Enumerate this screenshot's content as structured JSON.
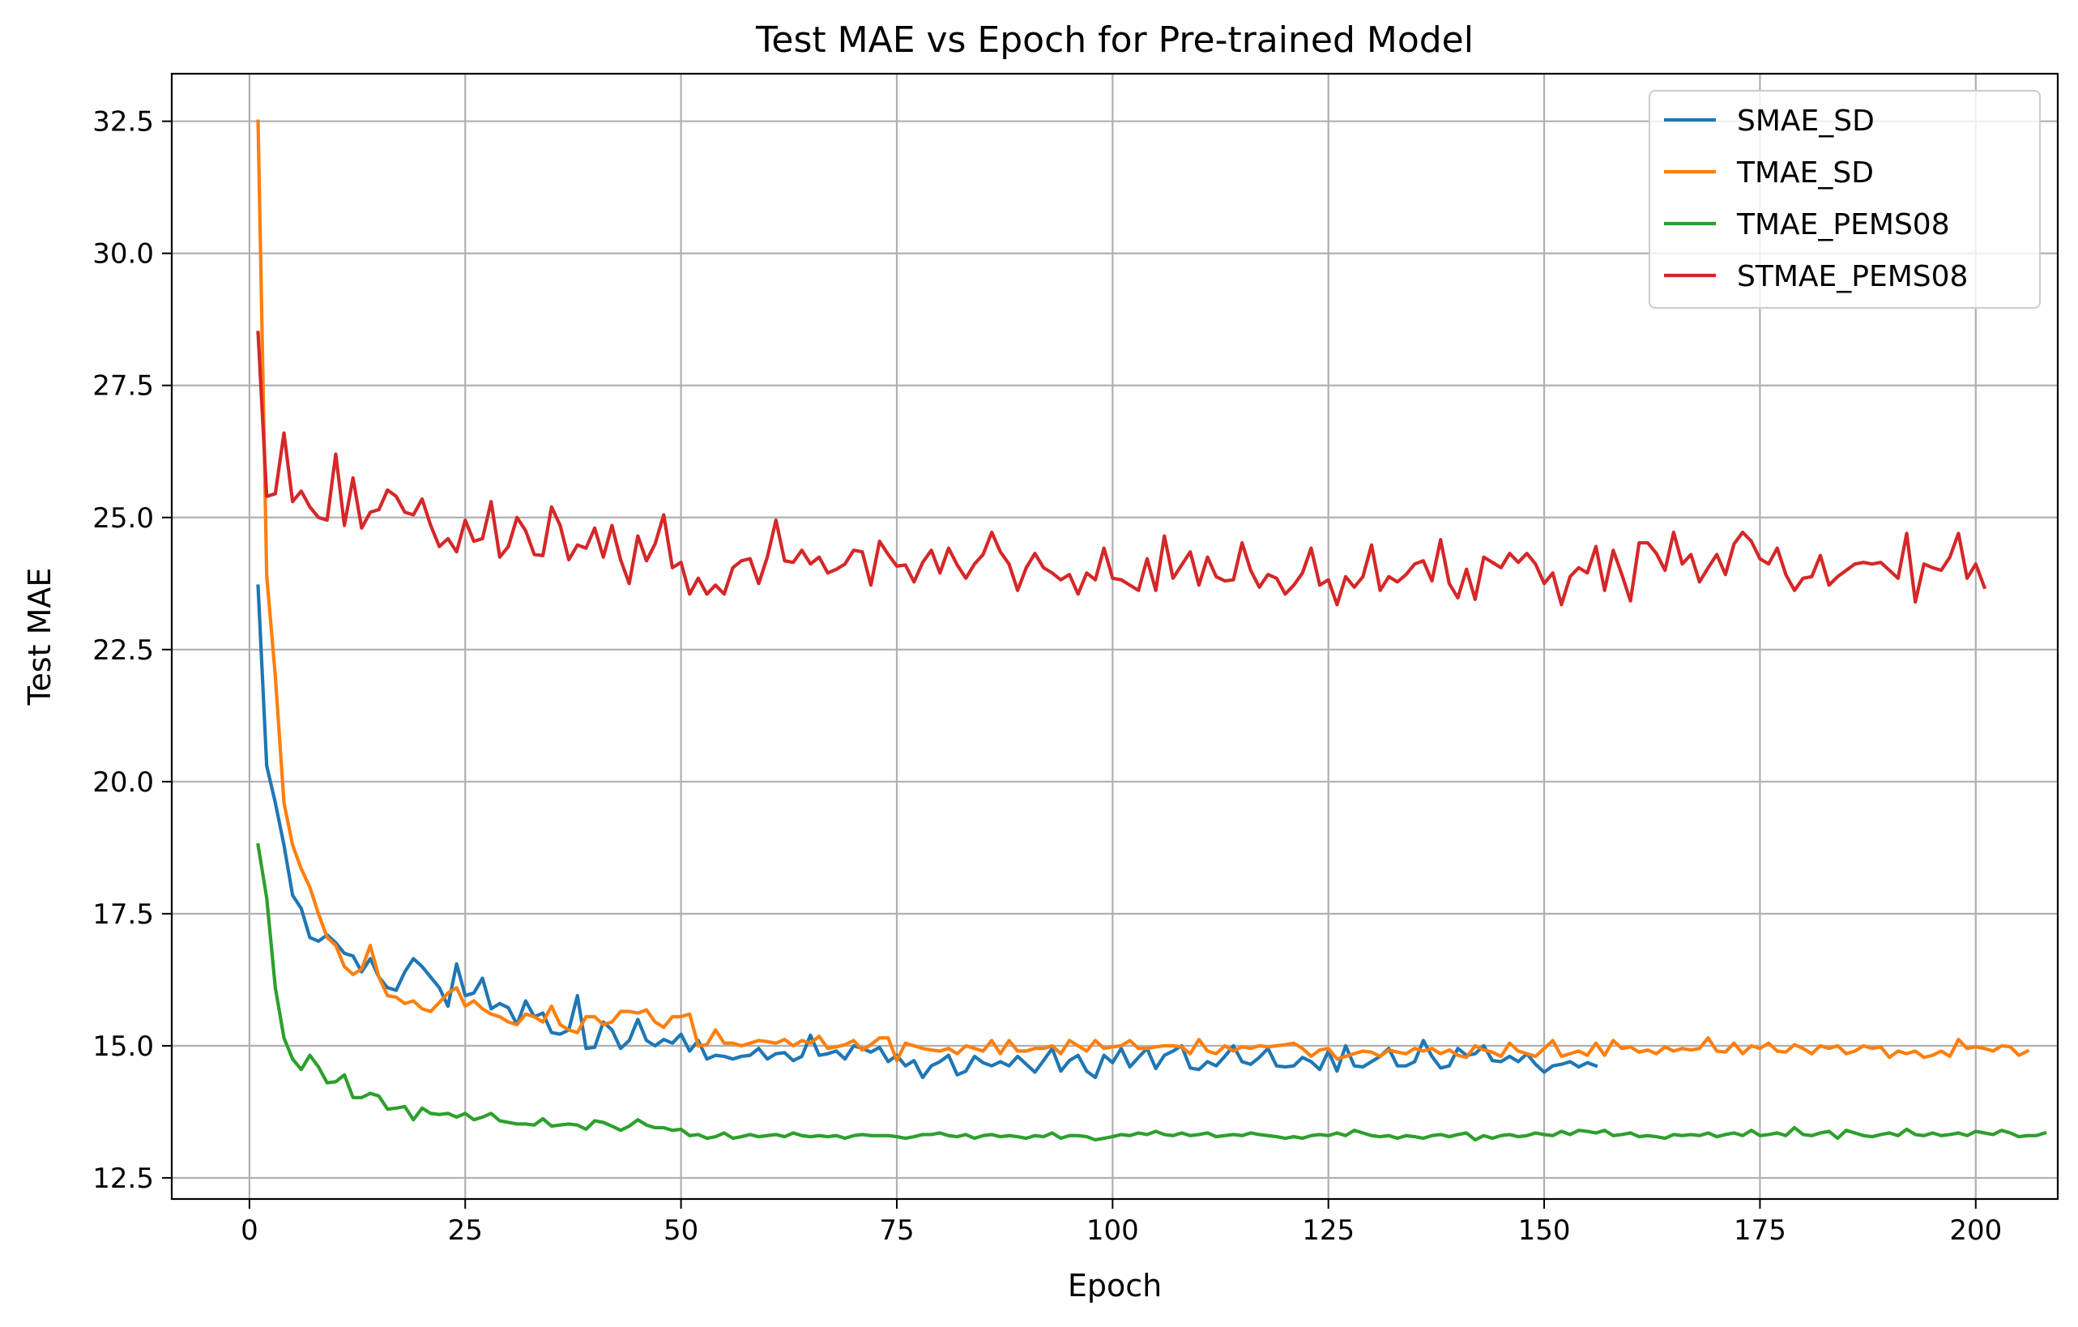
{
  "chart_data": {
    "type": "line",
    "title": "Test MAE vs Epoch for Pre-trained Model",
    "xlabel": "Epoch",
    "ylabel": "Test MAE",
    "xlim": [
      -9,
      209.5
    ],
    "ylim": [
      12.1,
      33.4
    ],
    "xticks": [
      0,
      25,
      50,
      75,
      100,
      125,
      150,
      175,
      200
    ],
    "yticks": [
      12.5,
      15.0,
      17.5,
      20.0,
      22.5,
      25.0,
      27.5,
      30.0,
      32.5
    ],
    "xtick_labels": [
      "0",
      "25",
      "50",
      "75",
      "100",
      "125",
      "150",
      "175",
      "200"
    ],
    "ytick_labels": [
      "12.5",
      "15.0",
      "17.5",
      "20.0",
      "22.5",
      "25.0",
      "27.5",
      "30.0",
      "32.5"
    ],
    "grid": true,
    "legend_position": "top-right",
    "series": [
      {
        "name": "SMAE_SD",
        "color": "#1f77b4",
        "x_start": 1,
        "values": [
          23.7,
          20.3,
          19.6,
          18.8,
          17.85,
          17.6,
          17.05,
          16.98,
          17.1,
          16.95,
          16.75,
          16.7,
          16.4,
          16.65,
          16.3,
          16.1,
          16.05,
          16.4,
          16.65,
          16.5,
          16.3,
          16.1,
          15.75,
          16.55,
          15.95,
          16.0,
          16.28,
          15.7,
          15.8,
          15.72,
          15.4,
          15.85,
          15.55,
          15.62,
          15.25,
          15.22,
          15.3,
          15.95,
          14.95,
          14.97,
          15.45,
          15.3,
          14.95,
          15.1,
          15.5,
          15.1,
          15.0,
          15.12,
          15.05,
          15.22,
          14.9,
          15.1,
          14.75,
          14.82,
          14.8,
          14.75,
          14.8,
          14.82,
          14.95,
          14.75,
          14.85,
          14.87,
          14.72,
          14.8,
          15.2,
          14.82,
          14.85,
          14.9,
          14.75,
          15.0,
          14.95,
          14.88,
          14.97,
          14.7,
          14.82,
          14.62,
          14.72,
          14.4,
          14.62,
          14.7,
          14.82,
          14.45,
          14.52,
          14.8,
          14.68,
          14.62,
          14.7,
          14.62,
          14.8,
          14.65,
          14.5,
          14.72,
          14.95,
          14.52,
          14.72,
          14.82,
          14.52,
          14.4,
          14.82,
          14.68,
          14.95,
          14.6,
          14.78,
          14.95,
          14.57,
          14.82,
          14.9,
          15.0,
          14.58,
          14.55,
          14.7,
          14.62,
          14.8,
          15.0,
          14.7,
          14.65,
          14.78,
          14.95,
          14.62,
          14.6,
          14.62,
          14.78,
          14.7,
          14.55,
          14.9,
          14.52,
          15.0,
          14.62,
          14.6,
          14.7,
          14.8,
          14.95,
          14.62,
          14.62,
          14.7,
          15.1,
          14.8,
          14.58,
          14.62,
          14.95,
          14.82,
          14.85,
          15.0,
          14.72,
          14.7,
          14.8,
          14.7,
          14.85,
          14.65,
          14.5,
          14.62,
          14.65,
          14.7,
          14.6,
          14.68,
          14.62
        ]
      },
      {
        "name": "TMAE_SD",
        "color": "#ff7f0e",
        "x_start": 1,
        "values": [
          32.5,
          23.9,
          22.0,
          19.6,
          18.8,
          18.35,
          18.0,
          17.5,
          17.05,
          16.9,
          16.5,
          16.35,
          16.45,
          16.9,
          16.3,
          15.95,
          15.92,
          15.8,
          15.85,
          15.7,
          15.65,
          15.82,
          16.0,
          16.1,
          15.75,
          15.85,
          15.7,
          15.6,
          15.55,
          15.45,
          15.4,
          15.6,
          15.55,
          15.45,
          15.75,
          15.4,
          15.3,
          15.25,
          15.55,
          15.55,
          15.4,
          15.45,
          15.65,
          15.65,
          15.62,
          15.68,
          15.45,
          15.35,
          15.55,
          15.55,
          15.6,
          15.0,
          15.02,
          15.3,
          15.05,
          15.05,
          15.0,
          15.05,
          15.1,
          15.08,
          15.05,
          15.12,
          15.0,
          15.1,
          15.05,
          15.18,
          14.95,
          14.98,
          15.02,
          15.1,
          14.92,
          15.02,
          15.15,
          15.15,
          14.72,
          15.05,
          15.0,
          14.95,
          14.92,
          14.9,
          14.95,
          14.85,
          15.0,
          14.95,
          14.9,
          15.1,
          14.85,
          15.1,
          14.9,
          14.9,
          14.95,
          14.95,
          15.0,
          14.85,
          15.1,
          15.0,
          14.9,
          15.1,
          14.95,
          14.98,
          15.0,
          15.1,
          14.95,
          14.95,
          14.98,
          15.0,
          15.0,
          14.98,
          14.85,
          15.12,
          14.9,
          14.85,
          15.0,
          14.9,
          14.98,
          14.95,
          15.0,
          14.98,
          15.0,
          15.02,
          15.05,
          14.95,
          14.8,
          14.92,
          14.95,
          14.75,
          14.8,
          14.85,
          14.9,
          14.88,
          14.8,
          14.92,
          14.88,
          14.85,
          14.95,
          14.9,
          14.95,
          14.85,
          14.92,
          14.82,
          14.78,
          15.0,
          14.92,
          14.88,
          14.8,
          15.05,
          14.9,
          14.85,
          14.8,
          14.95,
          15.1,
          14.8,
          14.85,
          14.9,
          14.82,
          15.05,
          14.82,
          15.1,
          14.95,
          14.98,
          14.88,
          14.92,
          14.85,
          14.98,
          14.9,
          14.95,
          14.92,
          14.95,
          15.15,
          14.9,
          14.88,
          15.05,
          14.85,
          15.0,
          14.95,
          15.05,
          14.9,
          14.88,
          15.02,
          14.95,
          14.85,
          15.0,
          14.95,
          15.0,
          14.85,
          14.9,
          15.0,
          14.95,
          14.98,
          14.78,
          14.9,
          14.85,
          14.9,
          14.78,
          14.82,
          14.9,
          14.8,
          15.12,
          14.95,
          14.98,
          14.95,
          14.9,
          15.0,
          14.98,
          14.82,
          14.9
        ]
      },
      {
        "name": "TMAE_PEMS08",
        "color": "#2ca02c",
        "x_start": 1,
        "values": [
          18.8,
          17.8,
          16.1,
          15.15,
          14.75,
          14.55,
          14.82,
          14.6,
          14.3,
          14.32,
          14.45,
          14.02,
          14.02,
          14.1,
          14.05,
          13.8,
          13.82,
          13.85,
          13.6,
          13.82,
          13.72,
          13.7,
          13.72,
          13.65,
          13.72,
          13.6,
          13.65,
          13.72,
          13.58,
          13.55,
          13.52,
          13.52,
          13.5,
          13.62,
          13.48,
          13.5,
          13.52,
          13.5,
          13.42,
          13.58,
          13.55,
          13.48,
          13.4,
          13.48,
          13.6,
          13.5,
          13.45,
          13.45,
          13.4,
          13.42,
          13.3,
          13.32,
          13.25,
          13.28,
          13.35,
          13.25,
          13.28,
          13.32,
          13.28,
          13.3,
          13.32,
          13.28,
          13.35,
          13.3,
          13.28,
          13.3,
          13.28,
          13.3,
          13.25,
          13.3,
          13.32,
          13.3,
          13.3,
          13.3,
          13.28,
          13.25,
          13.28,
          13.32,
          13.32,
          13.35,
          13.3,
          13.28,
          13.32,
          13.25,
          13.3,
          13.32,
          13.28,
          13.3,
          13.28,
          13.25,
          13.3,
          13.28,
          13.35,
          13.25,
          13.3,
          13.3,
          13.28,
          13.22,
          13.25,
          13.28,
          13.32,
          13.3,
          13.35,
          13.32,
          13.38,
          13.32,
          13.3,
          13.35,
          13.3,
          13.32,
          13.35,
          13.28,
          13.3,
          13.32,
          13.3,
          13.35,
          13.32,
          13.3,
          13.28,
          13.25,
          13.28,
          13.25,
          13.3,
          13.32,
          13.3,
          13.35,
          13.3,
          13.4,
          13.35,
          13.3,
          13.28,
          13.3,
          13.25,
          13.3,
          13.28,
          13.25,
          13.3,
          13.32,
          13.28,
          13.32,
          13.35,
          13.22,
          13.3,
          13.25,
          13.3,
          13.32,
          13.28,
          13.3,
          13.35,
          13.32,
          13.3,
          13.38,
          13.32,
          13.4,
          13.38,
          13.35,
          13.4,
          13.3,
          13.32,
          13.35,
          13.28,
          13.3,
          13.28,
          13.25,
          13.32,
          13.3,
          13.32,
          13.3,
          13.35,
          13.28,
          13.32,
          13.35,
          13.3,
          13.4,
          13.3,
          13.32,
          13.35,
          13.3,
          13.45,
          13.32,
          13.3,
          13.35,
          13.38,
          13.25,
          13.4,
          13.35,
          13.3,
          13.28,
          13.32,
          13.35,
          13.3,
          13.42,
          13.32,
          13.3,
          13.35,
          13.3,
          13.32,
          13.35,
          13.3,
          13.38,
          13.35,
          13.32,
          13.4,
          13.35,
          13.28,
          13.3,
          13.3,
          13.35
        ]
      },
      {
        "name": "STMAE_PEMS08",
        "color": "#d62728",
        "x_start": 1,
        "values": [
          28.5,
          25.4,
          25.45,
          26.6,
          25.3,
          25.5,
          25.2,
          25.0,
          24.95,
          26.2,
          24.85,
          25.75,
          24.8,
          25.1,
          25.15,
          25.52,
          25.4,
          25.1,
          25.05,
          25.35,
          24.85,
          24.45,
          24.6,
          24.35,
          24.95,
          24.55,
          24.6,
          25.3,
          24.25,
          24.45,
          25.0,
          24.75,
          24.3,
          24.28,
          25.2,
          24.85,
          24.2,
          24.48,
          24.42,
          24.8,
          24.25,
          24.85,
          24.2,
          23.75,
          24.65,
          24.18,
          24.5,
          25.05,
          24.05,
          24.15,
          23.55,
          23.85,
          23.55,
          23.72,
          23.55,
          24.05,
          24.18,
          24.22,
          23.75,
          24.25,
          24.95,
          24.18,
          24.15,
          24.38,
          24.12,
          24.25,
          23.95,
          24.02,
          24.12,
          24.38,
          24.35,
          23.72,
          24.55,
          24.3,
          24.08,
          24.1,
          23.78,
          24.15,
          24.38,
          23.95,
          24.42,
          24.1,
          23.85,
          24.12,
          24.3,
          24.72,
          24.35,
          24.12,
          23.62,
          24.05,
          24.32,
          24.05,
          23.95,
          23.82,
          23.92,
          23.55,
          23.95,
          23.82,
          24.42,
          23.85,
          23.82,
          23.72,
          23.62,
          24.22,
          23.62,
          24.65,
          23.85,
          24.1,
          24.35,
          23.72,
          24.25,
          23.88,
          23.8,
          23.82,
          24.52,
          24.0,
          23.68,
          23.92,
          23.85,
          23.55,
          23.72,
          23.95,
          24.42,
          23.72,
          23.82,
          23.35,
          23.88,
          23.68,
          23.88,
          24.48,
          23.62,
          23.88,
          23.78,
          23.92,
          24.12,
          24.18,
          23.8,
          24.58,
          23.75,
          23.48,
          24.02,
          23.45,
          24.25,
          24.15,
          24.05,
          24.32,
          24.15,
          24.32,
          24.12,
          23.75,
          23.95,
          23.35,
          23.88,
          24.05,
          23.95,
          24.45,
          23.62,
          24.38,
          23.92,
          23.42,
          24.52,
          24.52,
          24.32,
          24.0,
          24.72,
          24.12,
          24.3,
          23.78,
          24.05,
          24.3,
          23.92,
          24.5,
          24.72,
          24.55,
          24.22,
          24.12,
          24.42,
          23.92,
          23.62,
          23.85,
          23.88,
          24.28,
          23.72,
          23.88,
          24.0,
          24.12,
          24.15,
          24.12,
          24.15,
          24.0,
          23.85,
          24.7,
          23.4,
          24.12,
          24.05,
          24.0,
          24.25,
          24.7,
          23.85,
          24.12,
          23.68
        ]
      }
    ]
  }
}
